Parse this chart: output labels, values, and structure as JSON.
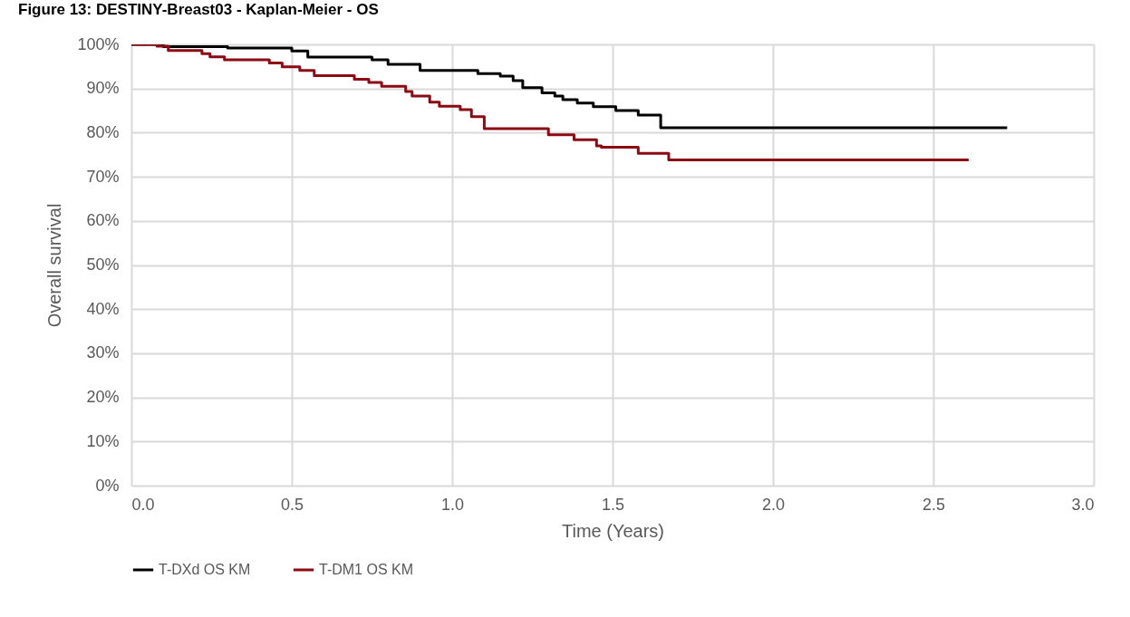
{
  "chart_data": {
    "type": "step",
    "title": "Figure 13: DESTINY-Breast03 - Kaplan-Meier - OS",
    "xlabel": "Time (Years)",
    "ylabel": "Overall survival",
    "xlim": [
      0,
      3
    ],
    "xticks": [
      {
        "value": 0,
        "label": "0.0"
      },
      {
        "value": 0.5,
        "label": "0.5"
      },
      {
        "value": 1,
        "label": "1.0"
      },
      {
        "value": 1.5,
        "label": "1.5"
      },
      {
        "value": 2,
        "label": "2.0"
      },
      {
        "value": 2.5,
        "label": "2.5"
      },
      {
        "value": 3,
        "label": "3.0"
      }
    ],
    "ylim": [
      0,
      100
    ],
    "yticks": [
      {
        "value": 0,
        "label": "0%"
      },
      {
        "value": 10,
        "label": "10%"
      },
      {
        "value": 20,
        "label": "20%"
      },
      {
        "value": 30,
        "label": "30%"
      },
      {
        "value": 40,
        "label": "40%"
      },
      {
        "value": 50,
        "label": "50%"
      },
      {
        "value": 60,
        "label": "60%"
      },
      {
        "value": 70,
        "label": "70%"
      },
      {
        "value": 80,
        "label": "80%"
      },
      {
        "value": 90,
        "label": "90%"
      },
      {
        "value": 100,
        "label": "100%"
      }
    ],
    "grid": true,
    "legend": "bottom",
    "series": [
      {
        "name": "T-DXd OS KM",
        "color": "#000000",
        "x": [
          0,
          0.1,
          0.3,
          0.5,
          0.55,
          0.75,
          0.8,
          0.9,
          1.08,
          1.15,
          1.19,
          1.22,
          1.28,
          1.32,
          1.345,
          1.39,
          1.44,
          1.51,
          1.58,
          1.65,
          2.73
        ],
        "values": [
          100,
          99.5,
          99.2,
          98.5,
          97.1,
          96.5,
          95.5,
          94.1,
          93.4,
          92.8,
          91.8,
          90.2,
          89.0,
          88.3,
          87.5,
          86.7,
          85.9,
          85.0,
          84.0,
          81.1,
          81.1
        ]
      },
      {
        "name": "T-DM1 OS KM",
        "color": "#8b0a14",
        "x": [
          0,
          0.08,
          0.115,
          0.22,
          0.245,
          0.29,
          0.43,
          0.47,
          0.525,
          0.57,
          0.695,
          0.74,
          0.78,
          0.855,
          0.875,
          0.93,
          0.96,
          1.025,
          1.06,
          1.1,
          1.3,
          1.38,
          1.45,
          1.465,
          1.58,
          1.675,
          2.61
        ],
        "values": [
          100,
          99.6,
          98.6,
          97.9,
          97.2,
          96.5,
          95.8,
          94.9,
          94.1,
          92.9,
          92.1,
          91.4,
          90.5,
          89.3,
          88.3,
          86.9,
          86.0,
          85.2,
          83.6,
          80.9,
          79.5,
          78.4,
          77.0,
          76.7,
          75.3,
          73.8,
          73.8
        ]
      }
    ]
  }
}
